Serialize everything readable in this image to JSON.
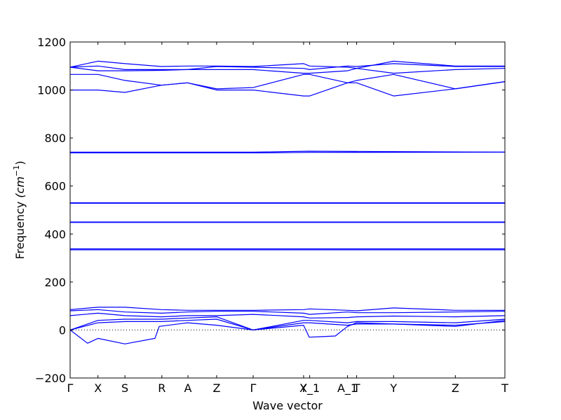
{
  "chart_data": {
    "type": "line",
    "title": "",
    "xlabel": "Wave vector",
    "ylabel": "Frequency",
    "ylabel_unit": "(cm",
    "ylabel_unit_sup": "−1",
    "ylabel_unit_close": ")",
    "ylim": [
      -200,
      1200
    ],
    "yticks": [
      "−200",
      "0",
      "200",
      "400",
      "600",
      "800",
      "1000",
      "1200"
    ],
    "ytick_values": [
      -200,
      0,
      200,
      400,
      600,
      800,
      1000,
      1200
    ],
    "xlim": [
      0,
      1
    ],
    "xticks": [
      {
        "label": "Γ",
        "x": 0.0
      },
      {
        "label": "X",
        "x": 0.064
      },
      {
        "label": "S",
        "x": 0.126
      },
      {
        "label": "R",
        "x": 0.211
      },
      {
        "label": "A",
        "x": 0.271
      },
      {
        "label": "Z",
        "x": 0.337
      },
      {
        "label": "Γ",
        "x": 0.421
      },
      {
        "label": "Y",
        "x": 0.537
      },
      {
        "label": "X_1",
        "x": 0.551
      },
      {
        "label": "A_1",
        "x": 0.638
      },
      {
        "label": "T",
        "x": 0.659
      },
      {
        "label": "Y",
        "x": 0.744
      },
      {
        "label": "Z",
        "x": 0.886
      },
      {
        "label": "T",
        "x": 1.0
      }
    ],
    "zero_line": true,
    "series_color": "#0000ff",
    "series": [
      {
        "x": [
          0,
          0.064,
          0.126,
          0.21,
          0.27,
          0.337,
          0.421,
          0.537,
          0.551,
          0.638,
          0.659,
          0.744,
          0.886,
          1
        ],
        "values": [
          1095,
          1120,
          1110,
          1098,
          1100,
          1100,
          1098,
          1110,
          1100,
          1095,
          1090,
          1120,
          1100,
          1100
        ]
      },
      {
        "x": [
          0,
          0.064,
          0.126,
          0.21,
          0.27,
          0.337,
          0.421,
          0.537,
          0.551,
          0.638,
          0.659,
          0.744,
          0.886,
          1
        ],
        "values": [
          1095,
          1100,
          1085,
          1085,
          1085,
          1098,
          1095,
          1090,
          1085,
          1100,
          1098,
          1110,
          1098,
          1098
        ]
      },
      {
        "x": [
          0,
          0.064,
          0.126,
          0.21,
          0.27,
          0.337,
          0.421,
          0.537,
          0.551,
          0.638,
          0.659,
          0.744,
          0.886,
          1
        ],
        "values": [
          1095,
          1080,
          1080,
          1082,
          1085,
          1085,
          1085,
          1070,
          1070,
          1080,
          1090,
          1070,
          1085,
          1090
        ]
      },
      {
        "x": [
          0,
          0.064,
          0.126,
          0.21,
          0.27,
          0.337,
          0.421,
          0.537,
          0.551,
          0.638,
          0.659,
          0.744,
          0.886,
          1
        ],
        "values": [
          1065,
          1065,
          1040,
          1020,
          1030,
          1005,
          1010,
          1065,
          1065,
          1030,
          1040,
          1065,
          1005,
          1035
        ]
      },
      {
        "x": [
          0,
          0.064,
          0.126,
          0.21,
          0.27,
          0.337,
          0.421,
          0.537,
          0.551,
          0.638,
          0.659,
          0.744,
          0.886,
          1
        ],
        "values": [
          1000,
          1000,
          990,
          1020,
          1030,
          1000,
          1000,
          975,
          975,
          1030,
          1030,
          975,
          1005,
          1035
        ]
      },
      {
        "x": [
          0,
          0.421,
          0.55,
          1
        ],
        "values": [
          741,
          741,
          745,
          741
        ]
      },
      {
        "x": [
          0,
          0.421,
          0.55,
          1
        ],
        "values": [
          738,
          738,
          740,
          741
        ]
      },
      {
        "x": [
          0,
          1
        ],
        "values": [
          530,
          530
        ]
      },
      {
        "x": [
          0,
          1
        ],
        "values": [
          528,
          528
        ]
      },
      {
        "x": [
          0,
          1
        ],
        "values": [
          450,
          450
        ]
      },
      {
        "x": [
          0,
          1
        ],
        "values": [
          448,
          448
        ]
      },
      {
        "x": [
          0,
          1
        ],
        "values": [
          338,
          338
        ]
      },
      {
        "x": [
          0,
          1
        ],
        "values": [
          334,
          334
        ]
      },
      {
        "x": [
          0,
          0.064,
          0.126,
          0.21,
          0.27,
          0.337,
          0.421,
          0.537,
          0.551,
          0.638,
          0.659,
          0.744,
          0.886,
          1
        ],
        "values": [
          85,
          95,
          95,
          85,
          82,
          82,
          82,
          85,
          88,
          82,
          80,
          92,
          82,
          82
        ]
      },
      {
        "x": [
          0,
          0.064,
          0.126,
          0.21,
          0.27,
          0.337,
          0.421,
          0.537,
          0.551,
          0.638,
          0.659,
          0.744,
          0.886,
          1
        ],
        "values": [
          80,
          85,
          75,
          70,
          75,
          78,
          78,
          70,
          65,
          75,
          72,
          72,
          75,
          78
        ]
      },
      {
        "x": [
          0,
          0.064,
          0.126,
          0.21,
          0.27,
          0.337,
          0.421,
          0.537,
          0.551,
          0.638,
          0.659,
          0.744,
          0.886,
          1
        ],
        "values": [
          60,
          70,
          60,
          55,
          60,
          60,
          65,
          55,
          50,
          52,
          55,
          58,
          55,
          60
        ]
      },
      {
        "x": [
          0,
          0.064,
          0.126,
          0.21,
          0.27,
          0.337,
          0.421,
          0.537,
          0.551,
          0.638,
          0.659,
          0.744,
          0.886,
          1
        ],
        "values": [
          0,
          40,
          45,
          45,
          50,
          55,
          0,
          40,
          40,
          30,
          35,
          35,
          30,
          45
        ]
      },
      {
        "x": [
          0,
          0.064,
          0.126,
          0.21,
          0.27,
          0.337,
          0.421,
          0.537,
          0.551,
          0.638,
          0.659,
          0.744,
          0.886,
          1
        ],
        "values": [
          0,
          30,
          35,
          35,
          40,
          45,
          0,
          30,
          30,
          20,
          25,
          25,
          20,
          35
        ]
      },
      {
        "x": [
          0,
          0.04,
          0.064,
          0.126,
          0.195,
          0.205,
          0.27,
          0.337,
          0.421,
          0.537,
          0.55,
          0.575,
          0.61,
          0.638,
          0.659,
          0.744,
          0.886,
          1
        ],
        "values": [
          0,
          -55,
          -35,
          -58,
          -35,
          15,
          30,
          20,
          0,
          20,
          -30,
          -28,
          -25,
          15,
          30,
          25,
          15,
          40
        ]
      }
    ]
  }
}
